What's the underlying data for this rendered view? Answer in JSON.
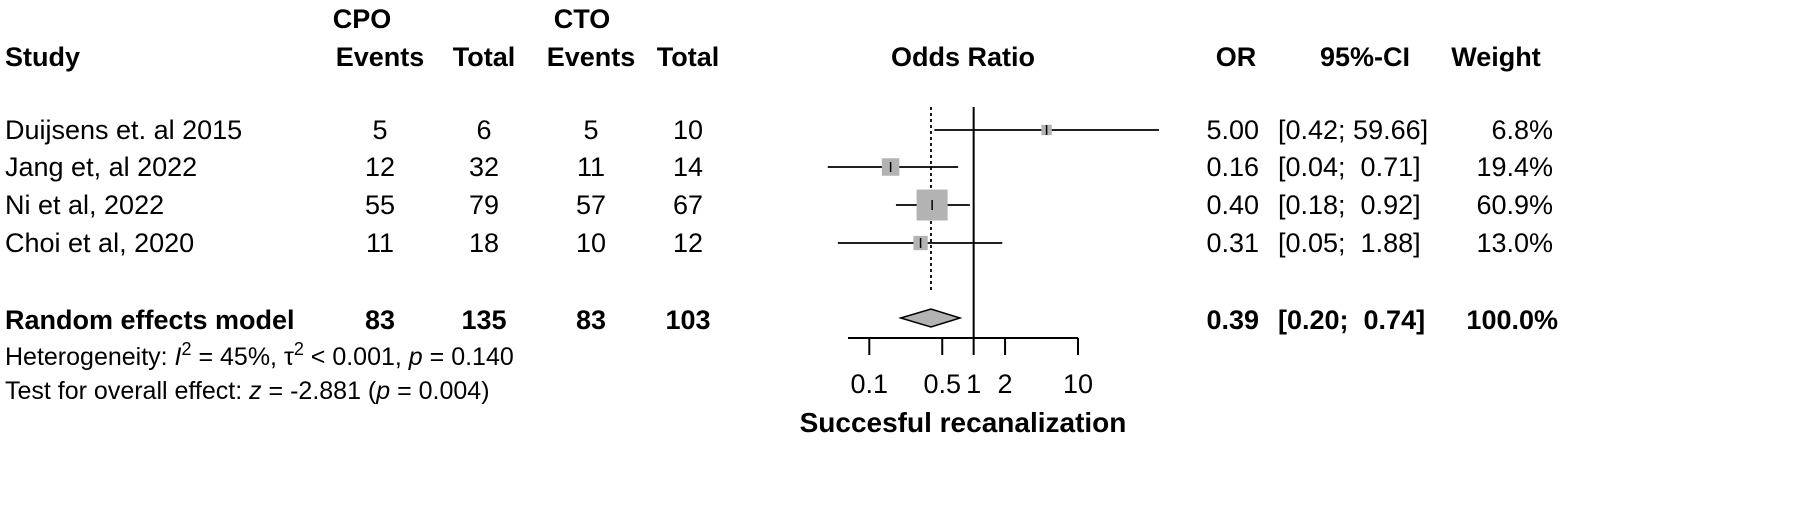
{
  "header": {
    "group1_name": "CPO",
    "group2_name": "CTO",
    "study": "Study",
    "events1": "Events",
    "total1": "Total",
    "events2": "Events",
    "total2": "Total",
    "odds_ratio": "Odds Ratio",
    "or": "OR",
    "ci": "95%-CI",
    "weight": "Weight"
  },
  "studies": [
    {
      "name": "Duijsens et. al 2015",
      "events1": "5",
      "total1": "6",
      "events2": "5",
      "total2": "10",
      "or": "5.00",
      "ci": "[0.42; 59.66]",
      "weight": "6.8%"
    },
    {
      "name": "Jang et, al 2022",
      "events1": "12",
      "total1": "32",
      "events2": "11",
      "total2": "14",
      "or": "0.16",
      "ci": "[0.04;  0.71]",
      "weight": "19.4%"
    },
    {
      "name": "Ni et al, 2022",
      "events1": "55",
      "total1": "79",
      "events2": "57",
      "total2": "67",
      "or": "0.40",
      "ci": "[0.18;  0.92]",
      "weight": "60.9%"
    },
    {
      "name": "Choi et al, 2020",
      "events1": "11",
      "total1": "18",
      "events2": "10",
      "total2": "12",
      "or": "0.31",
      "ci": "[0.05;  1.88]",
      "weight": "13.0%"
    }
  ],
  "model": {
    "name": "Random effects model",
    "events1": "83",
    "total1": "135",
    "events2": "83",
    "total2": "103",
    "or": "0.39",
    "ci": "[0.20;  0.74]",
    "weight": "100.0%"
  },
  "heterogeneity": {
    "prefix": "Heterogeneity: ",
    "i_symbol": "I",
    "i_sup": "2",
    "i_value": " = 45%, ",
    "tau_symbol": "τ",
    "tau_sup": "2",
    "tau_value": " < 0.001, ",
    "p_symbol": "p",
    "p_value": " = 0.140"
  },
  "overall_effect": {
    "prefix": "Test for overall effect: ",
    "z_symbol": "z",
    "z_value": " = -2.881 (",
    "p_symbol": "p",
    "p_value": " = 0.004)"
  },
  "chart_data": {
    "type": "forest",
    "x_scale": "log",
    "xlim": [
      0.0625,
      10
    ],
    "xticks": [
      0.1,
      0.5,
      1,
      2,
      10
    ],
    "xtick_labels": [
      "0.1",
      "0.5",
      "1",
      "2",
      "10"
    ],
    "xlabel": "Succesful recanalization",
    "null_line": 1,
    "pooled_line": 0.39,
    "points": [
      {
        "or": 5.0,
        "lower": 0.42,
        "upper": 59.66,
        "weight": 6.8
      },
      {
        "or": 0.16,
        "lower": 0.04,
        "upper": 0.71,
        "weight": 19.4
      },
      {
        "or": 0.4,
        "lower": 0.18,
        "upper": 0.92,
        "weight": 60.9
      },
      {
        "or": 0.31,
        "lower": 0.05,
        "upper": 1.88,
        "weight": 13.0
      }
    ],
    "pooled": {
      "or": 0.39,
      "lower": 0.2,
      "upper": 0.74
    },
    "colors": {
      "box": "#b3b3b3",
      "diamond": "#b3b3b3",
      "line": "#000000"
    }
  }
}
